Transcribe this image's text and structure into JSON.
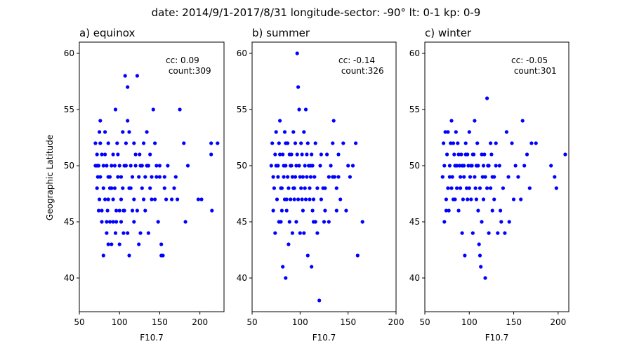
{
  "suptitle": "date: 2014/9/1-2017/8/31   longitude-sector: -90°   lt: 0-1   kp: 0-9",
  "ylabel": "Geographic Latitude",
  "marker_color": "#0000ff",
  "chart_data": [
    {
      "type": "scatter",
      "title": "a) equinox",
      "xlabel": "F10.7",
      "xlim": [
        50,
        230
      ],
      "ylim": [
        37,
        61
      ],
      "xticks": [
        50,
        100,
        150,
        200
      ],
      "yticks": [
        40,
        45,
        50,
        55,
        60
      ],
      "annotation": [
        "cc: 0.09",
        " count:309"
      ],
      "points": [
        [
          70,
          52
        ],
        [
          72,
          50
        ],
        [
          73,
          49
        ],
        [
          75,
          53
        ],
        [
          76,
          54
        ],
        [
          78,
          51
        ],
        [
          80,
          48
        ],
        [
          82,
          47
        ],
        [
          84,
          50
        ],
        [
          85,
          46
        ],
        [
          86,
          52
        ],
        [
          88,
          49
        ],
        [
          90,
          50
        ],
        [
          92,
          51
        ],
        [
          94,
          48
        ],
        [
          95,
          55
        ],
        [
          97,
          52
        ],
        [
          98,
          49
        ],
        [
          100,
          50
        ],
        [
          102,
          47
        ],
        [
          104,
          53
        ],
        [
          105,
          46
        ],
        [
          107,
          58
        ],
        [
          108,
          50
        ],
        [
          110,
          57
        ],
        [
          112,
          48
        ],
        [
          114,
          50
        ],
        [
          116,
          49
        ],
        [
          118,
          52
        ],
        [
          120,
          51
        ],
        [
          122,
          58
        ],
        [
          124,
          49
        ],
        [
          126,
          50
        ],
        [
          128,
          48
        ],
        [
          130,
          52
        ],
        [
          132,
          49
        ],
        [
          134,
          53
        ],
        [
          136,
          50
        ],
        [
          138,
          51
        ],
        [
          140,
          49
        ],
        [
          142,
          55
        ],
        [
          144,
          47
        ],
        [
          146,
          50
        ],
        [
          148,
          45
        ],
        [
          150,
          49
        ],
        [
          152,
          43
        ],
        [
          154,
          42
        ],
        [
          156,
          49
        ],
        [
          160,
          50
        ],
        [
          165,
          47
        ],
        [
          168,
          48
        ],
        [
          170,
          49
        ],
        [
          172,
          47
        ],
        [
          175,
          55
        ],
        [
          180,
          52
        ],
        [
          182,
          45
        ],
        [
          185,
          50
        ],
        [
          198,
          47
        ],
        [
          202,
          47
        ],
        [
          214,
          52
        ],
        [
          215,
          46
        ],
        [
          222,
          52
        ],
        [
          72,
          48
        ],
        [
          74,
          46
        ],
        [
          78,
          45
        ],
        [
          80,
          42
        ],
        [
          84,
          44
        ],
        [
          86,
          43
        ],
        [
          88,
          45
        ],
        [
          90,
          43
        ],
        [
          95,
          44
        ],
        [
          100,
          43
        ],
        [
          105,
          44
        ],
        [
          110,
          44
        ],
        [
          112,
          42
        ],
        [
          118,
          45
        ],
        [
          124,
          43
        ],
        [
          126,
          44
        ],
        [
          136,
          44
        ],
        [
          152,
          42
        ],
        [
          214,
          51
        ],
        [
          76,
          52
        ],
        [
          82,
          53
        ],
        [
          88,
          48
        ],
        [
          92,
          47
        ],
        [
          96,
          45
        ],
        [
          102,
          49
        ],
        [
          106,
          50
        ],
        [
          110,
          54
        ],
        [
          112,
          53
        ],
        [
          118,
          47
        ],
        [
          130,
          47
        ],
        [
          144,
          52
        ],
        [
          74,
          50
        ],
        [
          76,
          49
        ],
        [
          80,
          50
        ],
        [
          82,
          51
        ],
        [
          86,
          49
        ],
        [
          90,
          48
        ],
        [
          94,
          50
        ],
        [
          98,
          51
        ],
        [
          100,
          46
        ],
        [
          104,
          48
        ],
        [
          108,
          52
        ],
        [
          114,
          48
        ],
        [
          120,
          50
        ],
        [
          125,
          51
        ],
        [
          128,
          50
        ],
        [
          134,
          50
        ],
        [
          138,
          48
        ],
        [
          146,
          49
        ],
        [
          150,
          50
        ],
        [
          156,
          48
        ],
        [
          70,
          50
        ],
        [
          72,
          51
        ],
        [
          75,
          47
        ],
        [
          78,
          46
        ],
        [
          84,
          45
        ],
        [
          86,
          47
        ],
        [
          92,
          45
        ],
        [
          96,
          46
        ],
        [
          102,
          45
        ],
        [
          106,
          46
        ],
        [
          116,
          46
        ],
        [
          122,
          46
        ],
        [
          132,
          46
        ],
        [
          140,
          47
        ],
        [
          158,
          47
        ]
      ]
    },
    {
      "type": "scatter",
      "title": "b) summer",
      "xlabel": "F10.7",
      "xlim": [
        50,
        200
      ],
      "ylim": [
        37,
        61
      ],
      "xticks": [
        50,
        100,
        150,
        200
      ],
      "yticks": [
        40,
        45,
        50,
        55,
        60
      ],
      "annotation": [
        "cc: -0.14",
        " count:326"
      ],
      "points": [
        [
          70,
          50
        ],
        [
          71,
          52
        ],
        [
          72,
          49
        ],
        [
          73,
          48
        ],
        [
          74,
          51
        ],
        [
          75,
          53
        ],
        [
          76,
          47
        ],
        [
          77,
          50
        ],
        [
          78,
          52
        ],
        [
          79,
          54
        ],
        [
          80,
          48
        ],
        [
          81,
          46
        ],
        [
          82,
          51
        ],
        [
          83,
          49
        ],
        [
          84,
          53
        ],
        [
          85,
          50
        ],
        [
          86,
          47
        ],
        [
          87,
          52
        ],
        [
          88,
          48
        ],
        [
          89,
          45
        ],
        [
          90,
          50
        ],
        [
          91,
          51
        ],
        [
          92,
          49
        ],
        [
          93,
          53
        ],
        [
          94,
          47
        ],
        [
          95,
          52
        ],
        [
          96,
          50
        ],
        [
          97,
          60
        ],
        [
          98,
          57
        ],
        [
          99,
          55
        ],
        [
          100,
          49
        ],
        [
          101,
          48
        ],
        [
          102,
          51
        ],
        [
          103,
          46
        ],
        [
          104,
          53
        ],
        [
          105,
          50
        ],
        [
          106,
          55
        ],
        [
          107,
          49
        ],
        [
          108,
          52
        ],
        [
          110,
          48
        ],
        [
          111,
          50
        ],
        [
          112,
          51
        ],
        [
          113,
          46
        ],
        [
          114,
          47
        ],
        [
          115,
          49
        ],
        [
          116,
          52
        ],
        [
          118,
          48
        ],
        [
          120,
          38
        ],
        [
          121,
          50
        ],
        [
          122,
          51
        ],
        [
          124,
          48
        ],
        [
          125,
          45
        ],
        [
          126,
          46
        ],
        [
          128,
          51
        ],
        [
          130,
          45
        ],
        [
          132,
          50
        ],
        [
          134,
          52
        ],
        [
          135,
          54
        ],
        [
          136,
          49
        ],
        [
          138,
          46
        ],
        [
          140,
          51
        ],
        [
          142,
          47
        ],
        [
          145,
          52
        ],
        [
          148,
          46
        ],
        [
          150,
          50
        ],
        [
          152,
          49
        ],
        [
          155,
          50
        ],
        [
          158,
          52
        ],
        [
          160,
          42
        ],
        [
          165,
          45
        ],
        [
          82,
          41
        ],
        [
          85,
          40
        ],
        [
          88,
          43
        ],
        [
          92,
          44
        ],
        [
          96,
          45
        ],
        [
          100,
          44
        ],
        [
          104,
          44
        ],
        [
          108,
          42
        ],
        [
          112,
          41
        ],
        [
          116,
          45
        ],
        [
          72,
          46
        ],
        [
          74,
          44
        ],
        [
          78,
          45
        ],
        [
          80,
          45
        ],
        [
          84,
          47
        ],
        [
          86,
          46
        ],
        [
          90,
          47
        ],
        [
          94,
          48
        ],
        [
          98,
          47
        ],
        [
          102,
          47
        ],
        [
          106,
          47
        ],
        [
          110,
          47
        ],
        [
          114,
          45
        ],
        [
          118,
          44
        ],
        [
          122,
          47
        ],
        [
          126,
          48
        ],
        [
          130,
          49
        ],
        [
          134,
          49
        ],
        [
          138,
          48
        ],
        [
          140,
          49
        ],
        [
          75,
          50
        ],
        [
          77,
          49
        ],
        [
          79,
          51
        ],
        [
          81,
          48
        ],
        [
          83,
          50
        ],
        [
          85,
          52
        ],
        [
          87,
          49
        ],
        [
          89,
          51
        ],
        [
          91,
          50
        ],
        [
          93,
          48
        ],
        [
          95,
          49
        ],
        [
          97,
          51
        ],
        [
          99,
          50
        ],
        [
          101,
          52
        ],
        [
          103,
          49
        ],
        [
          105,
          48
        ],
        [
          107,
          51
        ],
        [
          109,
          50
        ],
        [
          111,
          49
        ],
        [
          113,
          50
        ]
      ]
    },
    {
      "type": "scatter",
      "title": "c) winter",
      "xlabel": "F10.7",
      "xlim": [
        50,
        212
      ],
      "ylim": [
        37,
        61
      ],
      "xticks": [
        50,
        100,
        150,
        200
      ],
      "yticks": [
        40,
        45,
        50,
        55,
        60
      ],
      "annotation": [
        "cc: -0.05",
        " count:301"
      ],
      "points": [
        [
          70,
          49
        ],
        [
          71,
          52
        ],
        [
          72,
          50
        ],
        [
          73,
          53
        ],
        [
          74,
          47
        ],
        [
          75,
          51
        ],
        [
          76,
          48
        ],
        [
          77,
          46
        ],
        [
          78,
          50
        ],
        [
          79,
          52
        ],
        [
          80,
          54
        ],
        [
          81,
          49
        ],
        [
          82,
          47
        ],
        [
          83,
          51
        ],
        [
          84,
          50
        ],
        [
          85,
          53
        ],
        [
          86,
          48
        ],
        [
          87,
          52
        ],
        [
          88,
          46
        ],
        [
          89,
          50
        ],
        [
          90,
          49
        ],
        [
          91,
          51
        ],
        [
          92,
          44
        ],
        [
          93,
          47
        ],
        [
          94,
          50
        ],
        [
          95,
          42
        ],
        [
          96,
          52
        ],
        [
          97,
          48
        ],
        [
          98,
          51
        ],
        [
          99,
          50
        ],
        [
          100,
          53
        ],
        [
          101,
          49
        ],
        [
          102,
          47
        ],
        [
          103,
          50
        ],
        [
          104,
          44
        ],
        [
          105,
          51
        ],
        [
          106,
          54
        ],
        [
          107,
          48
        ],
        [
          108,
          50
        ],
        [
          109,
          52
        ],
        [
          110,
          46
        ],
        [
          111,
          43
        ],
        [
          112,
          42
        ],
        [
          113,
          41
        ],
        [
          114,
          45
        ],
        [
          115,
          49
        ],
        [
          116,
          47
        ],
        [
          117,
          51
        ],
        [
          118,
          40
        ],
        [
          120,
          56
        ],
        [
          121,
          50
        ],
        [
          122,
          44
        ],
        [
          124,
          48
        ],
        [
          125,
          51
        ],
        [
          126,
          46
        ],
        [
          128,
          49
        ],
        [
          130,
          52
        ],
        [
          132,
          44
        ],
        [
          134,
          50
        ],
        [
          135,
          46
        ],
        [
          136,
          45
        ],
        [
          138,
          48
        ],
        [
          140,
          44
        ],
        [
          142,
          53
        ],
        [
          144,
          49
        ],
        [
          145,
          45
        ],
        [
          148,
          52
        ],
        [
          150,
          47
        ],
        [
          152,
          50
        ],
        [
          155,
          49
        ],
        [
          158,
          47
        ],
        [
          160,
          54
        ],
        [
          162,
          50
        ],
        [
          165,
          51
        ],
        [
          168,
          48
        ],
        [
          170,
          52
        ],
        [
          175,
          52
        ],
        [
          192,
          50
        ],
        [
          196,
          49
        ],
        [
          198,
          48
        ],
        [
          208,
          51
        ],
        [
          72,
          45
        ],
        [
          74,
          46
        ],
        [
          76,
          53
        ],
        [
          78,
          49
        ],
        [
          80,
          48
        ],
        [
          82,
          52
        ],
        [
          84,
          47
        ],
        [
          86,
          50
        ],
        [
          88,
          51
        ],
        [
          90,
          48
        ],
        [
          92,
          50
        ],
        [
          94,
          49
        ],
        [
          96,
          51
        ],
        [
          98,
          47
        ],
        [
          100,
          48
        ],
        [
          102,
          50
        ],
        [
          104,
          51
        ],
        [
          106,
          49
        ],
        [
          108,
          47
        ],
        [
          110,
          50
        ],
        [
          112,
          48
        ],
        [
          114,
          51
        ],
        [
          116,
          50
        ],
        [
          118,
          49
        ],
        [
          120,
          48
        ],
        [
          122,
          50
        ],
        [
          124,
          52
        ],
        [
          126,
          49
        ],
        [
          128,
          47
        ],
        [
          130,
          50
        ]
      ]
    }
  ]
}
